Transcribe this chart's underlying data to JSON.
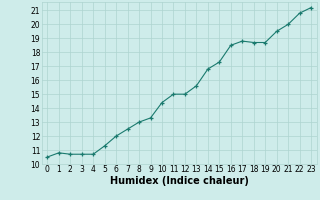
{
  "x": [
    0,
    1,
    2,
    3,
    4,
    5,
    6,
    7,
    8,
    9,
    10,
    11,
    12,
    13,
    14,
    15,
    16,
    17,
    18,
    19,
    20,
    21,
    22,
    23
  ],
  "y": [
    10.5,
    10.8,
    10.7,
    10.7,
    10.7,
    11.3,
    12.0,
    12.5,
    13.0,
    13.3,
    14.4,
    15.0,
    15.0,
    15.6,
    16.8,
    17.3,
    18.5,
    18.8,
    18.7,
    18.7,
    19.5,
    20.0,
    20.8,
    21.2
  ],
  "xlim": [
    -0.5,
    23.5
  ],
  "ylim": [
    10,
    21.6
  ],
  "yticks": [
    10,
    11,
    12,
    13,
    14,
    15,
    16,
    17,
    18,
    19,
    20,
    21
  ],
  "xticks": [
    0,
    1,
    2,
    3,
    4,
    5,
    6,
    7,
    8,
    9,
    10,
    11,
    12,
    13,
    14,
    15,
    16,
    17,
    18,
    19,
    20,
    21,
    22,
    23
  ],
  "xlabel": "Humidex (Indice chaleur)",
  "line_color": "#1a7a6e",
  "marker": "+",
  "bg_color": "#ceecea",
  "grid_color": "#aed4d0",
  "tick_label_fontsize": 5.5,
  "xlabel_fontsize": 7.0
}
